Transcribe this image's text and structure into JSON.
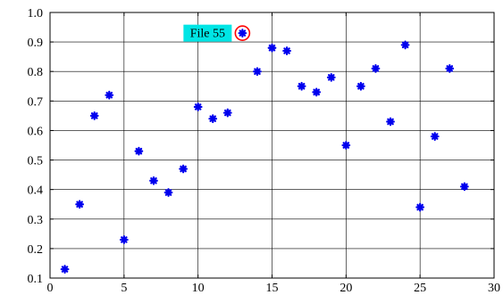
{
  "chart_data": {
    "type": "scatter",
    "title": "",
    "xlabel": "",
    "ylabel": "",
    "xlim": [
      0,
      30
    ],
    "ylim": [
      0.1,
      1.0
    ],
    "xticks": [
      0,
      5,
      10,
      15,
      20,
      25,
      30
    ],
    "yticks": [
      0.1,
      0.2,
      0.3,
      0.4,
      0.5,
      0.6,
      0.7,
      0.8,
      0.9,
      1.0
    ],
    "xtick_labels": [
      "0",
      "5",
      "10",
      "15",
      "20",
      "25",
      "30"
    ],
    "ytick_labels": [
      "0.1",
      "0.2",
      "0.3",
      "0.4",
      "0.5",
      "0.6",
      "0.7",
      "0.8",
      "0.9",
      "1.0"
    ],
    "grid": true,
    "marker_color": "#0000ee",
    "series": [
      {
        "x": [
          1,
          2,
          3,
          4,
          5,
          6,
          7,
          8,
          9,
          10,
          11,
          12,
          13,
          14,
          15,
          16,
          17,
          18,
          19,
          20,
          21,
          22,
          23,
          24,
          25,
          26,
          27,
          28
        ],
        "values": [
          0.13,
          0.35,
          0.65,
          0.72,
          0.23,
          0.53,
          0.43,
          0.39,
          0.47,
          0.68,
          0.64,
          0.66,
          0.93,
          0.8,
          0.88,
          0.87,
          0.75,
          0.73,
          0.78,
          0.55,
          0.75,
          0.81,
          0.63,
          0.89,
          0.34,
          0.58,
          0.81,
          0.41
        ]
      }
    ],
    "annotation": {
      "text": "File 55",
      "x": 13,
      "y": 0.93,
      "background": "#00e5e5",
      "circle_color": "#ff0000"
    }
  }
}
